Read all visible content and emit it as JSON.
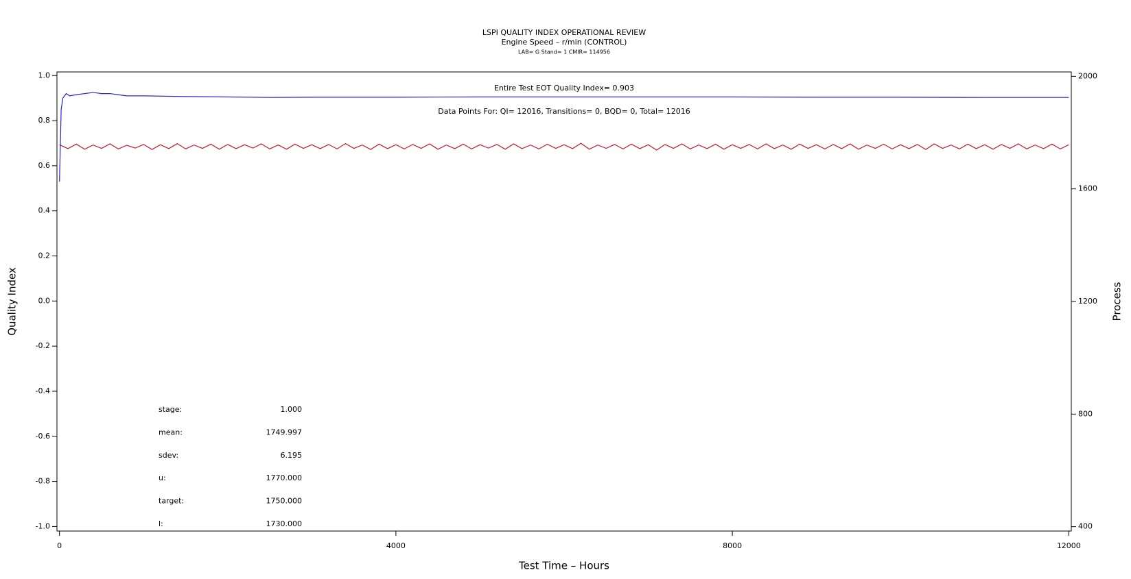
{
  "chart_data": {
    "type": "line",
    "title": "LSPI QUALITY INDEX OPERATIONAL REVIEW",
    "subtitle": "Engine Speed – r/min (CONTROL)",
    "caption": "LAB= G Stand= 1 CMIR= 114956",
    "annotations": [
      "Entire Test EOT Quality Index=   0.903",
      "Data Points For: QI= 12016, Transitions=     0, BQD=     0, Total= 12016"
    ],
    "stats": [
      {
        "label": "stage:",
        "value": "1.000"
      },
      {
        "label": "mean:",
        "value": "1749.997"
      },
      {
        "label": "sdev:",
        "value": "6.195"
      },
      {
        "label": "u:",
        "value": "1770.000"
      },
      {
        "label": "target:",
        "value": "1750.000"
      },
      {
        "label": "l:",
        "value": "1730.000"
      }
    ],
    "xlabel": "Test Time – Hours",
    "ylabel": "Quality Index",
    "y2label": "Process",
    "xlim": [
      -30,
      12030
    ],
    "xticks": [
      0,
      4000,
      8000,
      12000
    ],
    "ylim": [
      -1.02,
      1.016
    ],
    "yticks": [
      {
        "value": 1,
        "label": "1.0"
      },
      0.8,
      0.6,
      0.4,
      0.2,
      {
        "value": 0,
        "label": "0.0"
      },
      -0.2,
      -0.4,
      -0.6,
      -0.8,
      {
        "value": -1,
        "label": "-1.0"
      }
    ],
    "y2lim": [
      384.5,
      2015.5
    ],
    "y2ticks": [
      400,
      800,
      1200,
      1600,
      2000
    ],
    "grid": false,
    "series": [
      {
        "color": "#c0182a",
        "axis": "y2",
        "x": [
          0,
          100,
          200,
          300,
          400,
          500,
          600,
          700,
          800,
          900,
          1000,
          1100,
          1200,
          1300,
          1400,
          1500,
          1600,
          1700,
          1800,
          1900,
          2000,
          2100,
          2200,
          2300,
          2400,
          2500,
          2600,
          2700,
          2800,
          2900,
          3000,
          3100,
          3200,
          3300,
          3400,
          3500,
          3600,
          3700,
          3800,
          3900,
          4000,
          4100,
          4200,
          4300,
          4400,
          4500,
          4600,
          4700,
          4800,
          4900,
          5000,
          5100,
          5200,
          5300,
          5400,
          5500,
          5600,
          5700,
          5800,
          5900,
          6000,
          6100,
          6200,
          6300,
          6400,
          6500,
          6600,
          6700,
          6800,
          6900,
          7000,
          7100,
          7200,
          7300,
          7400,
          7500,
          7600,
          7700,
          7800,
          7900,
          8000,
          8100,
          8200,
          8300,
          8400,
          8500,
          8600,
          8700,
          8800,
          8900,
          9000,
          9100,
          9200,
          9300,
          9400,
          9500,
          9600,
          9700,
          9800,
          9900,
          10000,
          10100,
          10200,
          10300,
          10400,
          10500,
          10600,
          10700,
          10800,
          10900,
          11000,
          11100,
          11200,
          11300,
          11400,
          11500,
          11600,
          11700,
          11800,
          11900,
          12000
        ],
        "values": [
          1757,
          1743,
          1759,
          1741,
          1756,
          1744,
          1760,
          1742,
          1755,
          1745,
          1758,
          1740,
          1757,
          1743,
          1761,
          1742,
          1756,
          1744,
          1759,
          1741,
          1758,
          1743,
          1757,
          1745,
          1760,
          1742,
          1756,
          1741,
          1759,
          1744,
          1757,
          1743,
          1758,
          1742,
          1761,
          1744,
          1756,
          1740,
          1759,
          1743,
          1757,
          1742,
          1758,
          1744,
          1760,
          1741,
          1756,
          1743,
          1759,
          1742,
          1757,
          1745,
          1758,
          1741,
          1760,
          1743,
          1756,
          1742,
          1759,
          1744,
          1757,
          1743,
          1762,
          1741,
          1756,
          1744,
          1758,
          1742,
          1759,
          1743,
          1757,
          1738,
          1758,
          1744,
          1760,
          1742,
          1756,
          1743,
          1759,
          1741,
          1757,
          1744,
          1758,
          1742,
          1760,
          1743,
          1756,
          1741,
          1759,
          1744,
          1757,
          1742,
          1758,
          1743,
          1760,
          1741,
          1756,
          1744,
          1759,
          1742,
          1757,
          1743,
          1758,
          1740,
          1760,
          1744,
          1756,
          1742,
          1759,
          1743,
          1757,
          1741,
          1758,
          1744,
          1760,
          1742,
          1756,
          1743,
          1759,
          1742,
          1757
        ]
      },
      {
        "color": "#2424c8",
        "axis": "y",
        "x": [
          0,
          20,
          40,
          80,
          120,
          200,
          300,
          400,
          500,
          600,
          700,
          800,
          1000,
          1500,
          2000,
          2500,
          3000,
          4000,
          5000,
          6000,
          7000,
          8000,
          9000,
          10000,
          11000,
          12000
        ],
        "values": [
          0.53,
          0.85,
          0.9,
          0.92,
          0.91,
          0.915,
          0.92,
          0.925,
          0.92,
          0.92,
          0.915,
          0.91,
          0.91,
          0.907,
          0.905,
          0.903,
          0.904,
          0.904,
          0.905,
          0.905,
          0.905,
          0.905,
          0.904,
          0.904,
          0.903,
          0.903
        ]
      }
    ]
  }
}
